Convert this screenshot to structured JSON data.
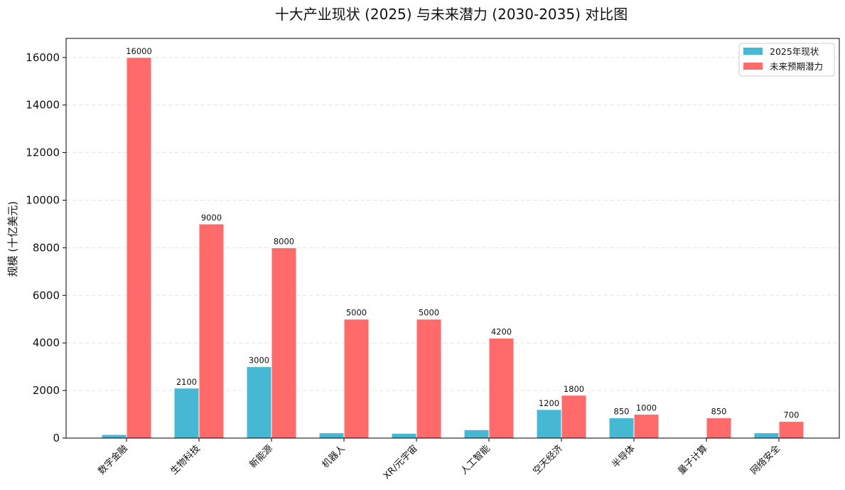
{
  "chart_data": {
    "type": "bar",
    "title": "十大产业现状 (2025) 与未来潜力 (2030-2035) 对比图",
    "xlabel": "",
    "ylabel": "规模 (十亿美元)",
    "ylim": [
      0,
      16800
    ],
    "yticks": [
      0,
      2000,
      4000,
      6000,
      8000,
      10000,
      12000,
      14000,
      16000
    ],
    "grid": "horizontal dashed",
    "legend_position": "top-right",
    "categories": [
      "数字金融",
      "生物科技",
      "新能源",
      "机器人",
      "XR/元宇宙",
      "人工智能",
      "空天经济",
      "半导体",
      "量子计算",
      "网络安全"
    ],
    "series": [
      {
        "name": "2025年现状",
        "color": "#47b8d4",
        "values": [
          150,
          2100,
          3000,
          220,
          200,
          350,
          1200,
          850,
          0,
          220
        ],
        "labels": [
          "",
          "2100",
          "3000",
          "",
          "",
          "",
          "1200",
          "850",
          "",
          ""
        ]
      },
      {
        "name": "未来预期潜力",
        "color": "#ff6b6b",
        "values": [
          16000,
          9000,
          8000,
          5000,
          5000,
          4200,
          1800,
          1000,
          850,
          700
        ],
        "labels": [
          "16000",
          "9000",
          "8000",
          "5000",
          "5000",
          "4200",
          "1800",
          "1000",
          "850",
          "700"
        ]
      }
    ]
  }
}
